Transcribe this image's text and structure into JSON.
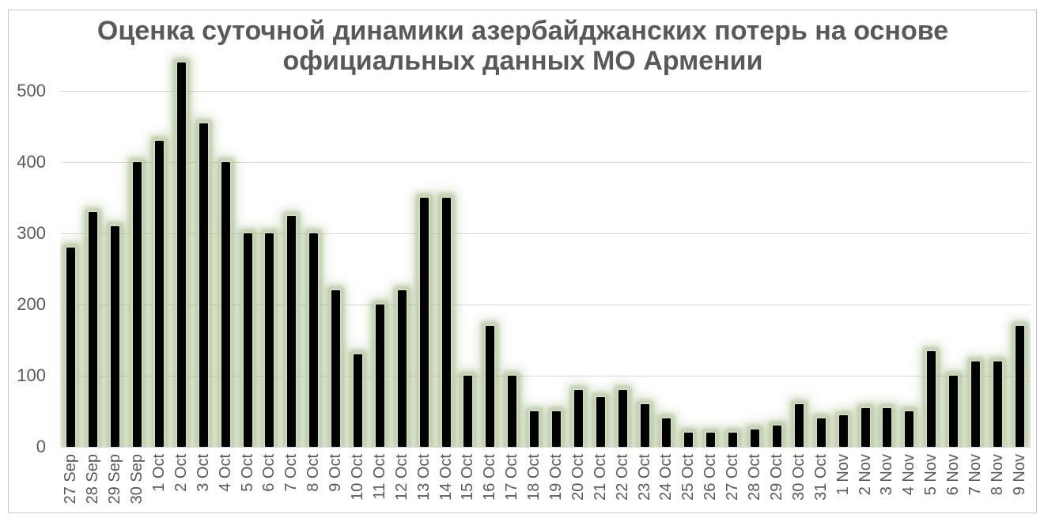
{
  "chart_data": {
    "type": "bar",
    "title": "Оценка суточной динамики азербайджанских потерь на основе официальных данных МО Армении",
    "title_lines": [
      "Оценка суточной динамики азербайджанских потерь на основе",
      "официальных данных МО Армении"
    ],
    "xlabel": "",
    "ylabel": "",
    "ylim": [
      0,
      560
    ],
    "yticks": [
      0,
      100,
      200,
      300,
      400,
      500
    ],
    "grid": "horizontal",
    "legend": "none",
    "categories": [
      "27 Sep",
      "28 Sep",
      "29 Sep",
      "30 Sep",
      "1 Oct",
      "2 Oct",
      "3 Oct",
      "4 Oct",
      "5 Oct",
      "6 Oct",
      "7 Oct",
      "8 Oct",
      "9 Oct",
      "10 Oct",
      "11 Oct",
      "12 Oct",
      "13 Oct",
      "14 Oct",
      "15 Oct",
      "16 Oct",
      "17 Oct",
      "18 Oct",
      "19 Oct",
      "20 Oct",
      "21 Oct",
      "22 Oct",
      "23 Oct",
      "24 Oct",
      "25 Oct",
      "26 Oct",
      "27 Oct",
      "28 Oct",
      "29 Oct",
      "30 Oct",
      "31 Oct",
      "1 Nov",
      "2 Nov",
      "3 Nov",
      "4 Nov",
      "5 Nov",
      "6 Nov",
      "7 Nov",
      "8 Nov",
      "9 Nov"
    ],
    "values": [
      280,
      330,
      310,
      400,
      430,
      540,
      455,
      400,
      300,
      300,
      325,
      300,
      220,
      130,
      200,
      220,
      350,
      350,
      100,
      170,
      100,
      50,
      50,
      80,
      70,
      80,
      60,
      40,
      20,
      20,
      20,
      25,
      30,
      60,
      40,
      45,
      55,
      55,
      50,
      135,
      100,
      120,
      120,
      170
    ],
    "colors": {
      "bar": "#000000",
      "bar_glow": "#a3b887",
      "gridline": "#d9d9d9",
      "text": "#595959",
      "frame_border": "#c8c8c8",
      "background": "#ffffff"
    }
  }
}
